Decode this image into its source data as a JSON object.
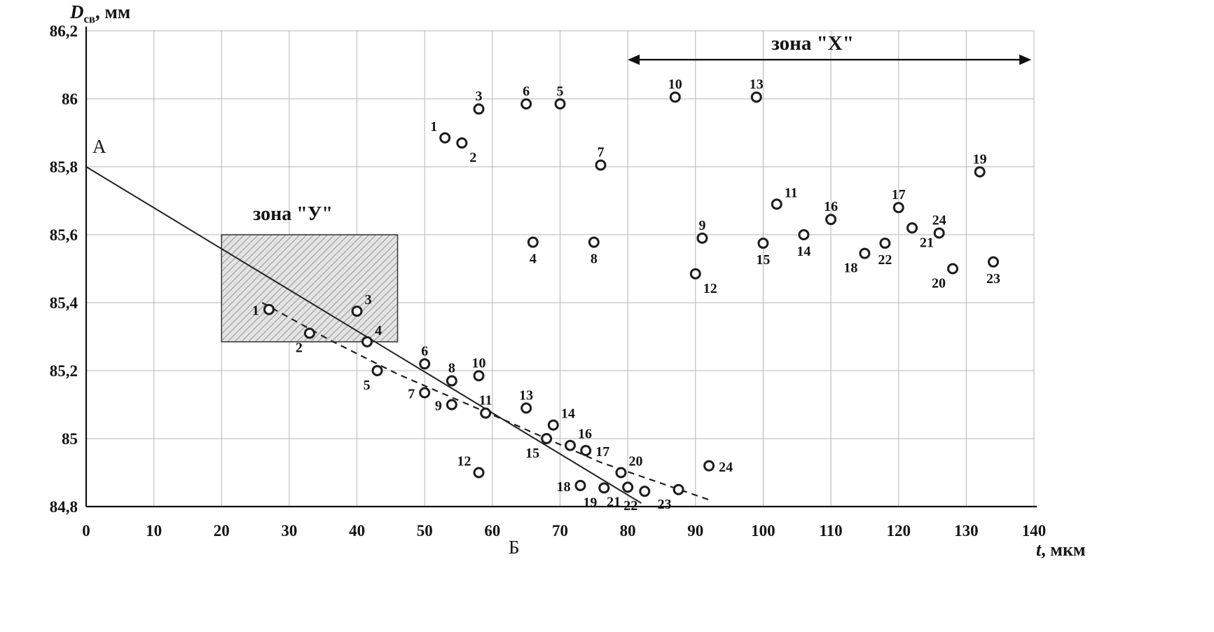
{
  "chart_data": {
    "type": "scatter",
    "title": "",
    "xlabel_var": "t",
    "xlabel_rest": ", мкм",
    "ylabel_var": "D",
    "ylabel_sub": "св",
    "ylabel_rest": ", мм",
    "xlim": [
      0,
      140
    ],
    "ylim": [
      84.8,
      86.2
    ],
    "grid": true,
    "xticks": [
      0,
      10,
      20,
      30,
      40,
      50,
      60,
      70,
      80,
      90,
      100,
      110,
      120,
      130,
      140
    ],
    "xtick_labels": [
      "0",
      "10",
      "20",
      "30",
      "40",
      "50",
      "60",
      "70",
      "80",
      "90",
      "100",
      "110",
      "120",
      "130",
      "140"
    ],
    "ytick_values": [
      86.2,
      86.0,
      85.8,
      85.6,
      85.4,
      85.2,
      85.0,
      84.8
    ],
    "ytick_labels": [
      "86,2",
      "86",
      "85,8",
      "85,6",
      "85,4",
      "85,2",
      "85",
      "84,8"
    ],
    "colors": {
      "point_stroke": "#1c1c1c",
      "grid": "#b4b4b4",
      "axis": "#111111",
      "text": "#141414",
      "line": "#222222",
      "hatch_bg": "#e3e3e3",
      "hatch_line": "#9b9b9b",
      "zone_border": "#3c3c3c"
    },
    "series": [
      {
        "name": "upper-group",
        "points": [
          {
            "n": "1",
            "x": 53,
            "y": 85.885,
            "lp": "al"
          },
          {
            "n": "2",
            "x": 55.5,
            "y": 85.87,
            "lp": "br"
          },
          {
            "n": "3",
            "x": 58,
            "y": 85.97,
            "lp": "a"
          },
          {
            "n": "4",
            "x": 66,
            "y": 85.578,
            "lp": "b"
          },
          {
            "n": "5",
            "x": 70,
            "y": 85.985,
            "lp": "a"
          },
          {
            "n": "6",
            "x": 65,
            "y": 85.985,
            "lp": "a"
          },
          {
            "n": "7",
            "x": 76,
            "y": 85.805,
            "lp": "a"
          },
          {
            "n": "8",
            "x": 75,
            "y": 85.578,
            "lp": "b"
          },
          {
            "n": "9",
            "x": 91,
            "y": 85.59,
            "lp": "a"
          },
          {
            "n": "10",
            "x": 87,
            "y": 86.005,
            "lp": "a"
          },
          {
            "n": "11",
            "x": 102,
            "y": 85.69,
            "lp": "ar"
          },
          {
            "n": "12",
            "x": 90,
            "y": 85.485,
            "lp": "br"
          },
          {
            "n": "13",
            "x": 99,
            "y": 86.005,
            "lp": "a"
          },
          {
            "n": "14",
            "x": 106,
            "y": 85.6,
            "lp": "b"
          },
          {
            "n": "15",
            "x": 100,
            "y": 85.575,
            "lp": "b"
          },
          {
            "n": "16",
            "x": 110,
            "y": 85.645,
            "lp": "a"
          },
          {
            "n": "17",
            "x": 120,
            "y": 85.68,
            "lp": "a"
          },
          {
            "n": "18",
            "x": 115,
            "y": 85.545,
            "lp": "bl"
          },
          {
            "n": "19",
            "x": 132,
            "y": 85.785,
            "lp": "a"
          },
          {
            "n": "20",
            "x": 128,
            "y": 85.5,
            "lp": "bl"
          },
          {
            "n": "21",
            "x": 122,
            "y": 85.62,
            "lp": "br"
          },
          {
            "n": "22",
            "x": 118,
            "y": 85.575,
            "lp": "b"
          },
          {
            "n": "23",
            "x": 134,
            "y": 85.52,
            "lp": "b"
          },
          {
            "n": "24",
            "x": 126,
            "y": 85.605,
            "lp": "a"
          }
        ]
      },
      {
        "name": "lower-group",
        "points": [
          {
            "n": "1",
            "x": 27,
            "y": 85.38,
            "lp": "l"
          },
          {
            "n": "2",
            "x": 33,
            "y": 85.31,
            "lp": "bl"
          },
          {
            "n": "3",
            "x": 40,
            "y": 85.375,
            "lp": "ar"
          },
          {
            "n": "4",
            "x": 41.5,
            "y": 85.285,
            "lp": "ar"
          },
          {
            "n": "5",
            "x": 43,
            "y": 85.2,
            "lp": "bl"
          },
          {
            "n": "6",
            "x": 50,
            "y": 85.22,
            "lp": "a"
          },
          {
            "n": "7",
            "x": 50,
            "y": 85.135,
            "lp": "l"
          },
          {
            "n": "8",
            "x": 54,
            "y": 85.17,
            "lp": "a"
          },
          {
            "n": "9",
            "x": 54,
            "y": 85.1,
            "lp": "l"
          },
          {
            "n": "10",
            "x": 58,
            "y": 85.185,
            "lp": "a"
          },
          {
            "n": "11",
            "x": 59,
            "y": 85.075,
            "lp": "a"
          },
          {
            "n": "12",
            "x": 58,
            "y": 84.9,
            "lp": "al"
          },
          {
            "n": "13",
            "x": 65,
            "y": 85.09,
            "lp": "a"
          },
          {
            "n": "14",
            "x": 69,
            "y": 85.04,
            "lp": "ar"
          },
          {
            "n": "15",
            "x": 68,
            "y": 85.0,
            "lp": "bl"
          },
          {
            "n": "16",
            "x": 71.5,
            "y": 84.98,
            "lp": "ar"
          },
          {
            "n": "17",
            "x": 73.8,
            "y": 84.965,
            "lp": "r"
          },
          {
            "n": "18",
            "x": 73,
            "y": 84.862,
            "lp": "l"
          },
          {
            "n": "19",
            "x": 76.5,
            "y": 84.855,
            "lp": "bl"
          },
          {
            "n": "20",
            "x": 79,
            "y": 84.9,
            "lp": "ar"
          },
          {
            "n": "21",
            "x": 80,
            "y": 84.857,
            "lp": "bl"
          },
          {
            "n": "22",
            "x": 82.5,
            "y": 84.845,
            "lp": "bl"
          },
          {
            "n": "23",
            "x": 87.5,
            "y": 84.85,
            "lp": "bl"
          },
          {
            "n": "24",
            "x": 92,
            "y": 84.92,
            "lp": "r"
          }
        ]
      }
    ],
    "trend_line": {
      "label_start": "А",
      "label_end": "Б",
      "x1": 0,
      "y1": 85.8,
      "x2": 82,
      "y2": 84.81
    },
    "dashed_curve": {
      "points": [
        [
          26,
          85.4
        ],
        [
          36,
          85.29
        ],
        [
          46,
          85.19
        ],
        [
          60,
          85.07
        ],
        [
          76,
          84.93
        ],
        [
          92,
          84.82
        ]
      ]
    },
    "zone_x": {
      "label": "зона \"X\"",
      "x_from": 80,
      "x_to": 139.6,
      "y": 86.115
    },
    "zone_y": {
      "label": "зона \"У\"",
      "x_from": 20,
      "x_to": 46,
      "y_from": 85.285,
      "y_to": 85.6
    }
  }
}
